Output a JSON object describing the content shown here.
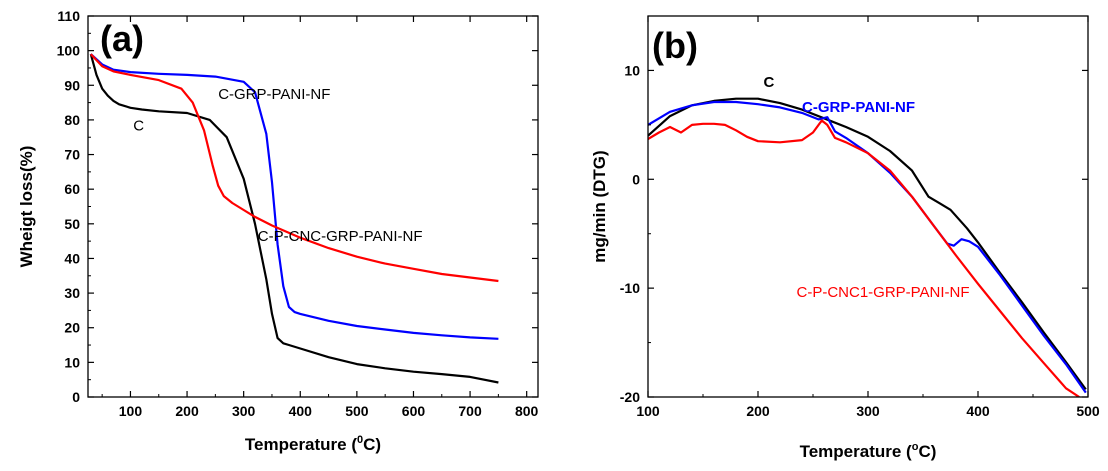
{
  "chart_data": [
    {
      "panel_label": "(a)",
      "type": "line",
      "xlabel": "Temperature (",
      "xlabel_sup": "0",
      "xlabel_unit": "C)",
      "ylabel": "Wheigt loss(%)",
      "xlim": [
        25,
        820
      ],
      "ylim": [
        0,
        110
      ],
      "xticks": [
        100,
        200,
        300,
        400,
        500,
        600,
        700,
        800
      ],
      "yticks": [
        0,
        10,
        20,
        30,
        40,
        50,
        60,
        70,
        80,
        90,
        100,
        110
      ],
      "grid": false,
      "series": [
        {
          "color": "#000000",
          "x": [
            30,
            40,
            50,
            60,
            70,
            80,
            100,
            120,
            150,
            200,
            240,
            270,
            300,
            320,
            340,
            350,
            360,
            370,
            380,
            400,
            450,
            500,
            550,
            600,
            650,
            700,
            750
          ],
          "y": [
            99,
            93,
            89,
            87,
            85.5,
            84.5,
            83.5,
            83,
            82.5,
            82,
            80,
            75,
            63,
            50,
            34,
            24,
            17,
            15.5,
            15,
            14,
            11.5,
            9.5,
            8.3,
            7.3,
            6.6,
            5.8,
            4.2
          ]
        },
        {
          "color": "#0000ff",
          "x": [
            30,
            50,
            70,
            100,
            150,
            200,
            250,
            300,
            320,
            340,
            350,
            360,
            370,
            380,
            390,
            400,
            450,
            500,
            550,
            600,
            650,
            700,
            750
          ],
          "y": [
            99,
            96,
            94.5,
            93.8,
            93.3,
            93,
            92.5,
            91,
            88,
            76,
            62,
            44,
            32,
            26,
            24.5,
            24,
            22,
            20.5,
            19.5,
            18.5,
            17.8,
            17.2,
            16.8
          ]
        },
        {
          "color": "#ff0000",
          "x": [
            30,
            50,
            70,
            100,
            150,
            190,
            210,
            230,
            245,
            255,
            265,
            280,
            300,
            320,
            350,
            400,
            450,
            500,
            550,
            600,
            650,
            700,
            750
          ],
          "y": [
            99,
            95.5,
            94,
            93,
            91.5,
            89,
            85,
            77,
            67,
            61,
            58,
            56,
            54,
            52,
            49.5,
            46,
            43,
            40.5,
            38.5,
            37,
            35.5,
            34.5,
            33.5
          ]
        }
      ],
      "annotations": [
        {
          "text": "C-GRP-PANI-NF",
          "x": 255,
          "y": 86,
          "color": "#000000",
          "bold": false
        },
        {
          "text": "C",
          "x": 105,
          "y": 77,
          "color": "#000000",
          "bold": false
        },
        {
          "text": "C-P-CNC-GRP-PANI-NF",
          "x": 325,
          "y": 45,
          "color": "#000000",
          "bold": false
        }
      ]
    },
    {
      "panel_label": "(b)",
      "type": "line",
      "xlabel": "Temperature (",
      "xlabel_sup": "o",
      "xlabel_unit": "C)",
      "ylabel": "mg/min (DTG)",
      "xlim": [
        100,
        500
      ],
      "ylim": [
        -20,
        15
      ],
      "xticks": [
        100,
        200,
        300,
        400,
        500
      ],
      "yticks": [
        -20,
        -10,
        0,
        10
      ],
      "grid": false,
      "series": [
        {
          "color": "#000000",
          "x": [
            100,
            120,
            140,
            160,
            180,
            200,
            220,
            240,
            260,
            280,
            300,
            320,
            340,
            355,
            365,
            375,
            390,
            400,
            420,
            440,
            460,
            480,
            498
          ],
          "y": [
            4.0,
            5.8,
            6.8,
            7.2,
            7.4,
            7.4,
            7.0,
            6.4,
            5.6,
            4.8,
            3.9,
            2.6,
            0.8,
            -1.6,
            -2.2,
            -2.8,
            -4.5,
            -5.8,
            -8.6,
            -11.3,
            -14.1,
            -16.8,
            -19.3
          ]
        },
        {
          "color": "#0000ff",
          "x": [
            100,
            120,
            140,
            160,
            180,
            200,
            220,
            240,
            255,
            263,
            270,
            280,
            300,
            320,
            340,
            360,
            372,
            378,
            385,
            392,
            400,
            420,
            440,
            460,
            480,
            498
          ],
          "y": [
            5.0,
            6.2,
            6.8,
            7.1,
            7.1,
            6.9,
            6.6,
            6.1,
            5.5,
            5.7,
            4.4,
            3.8,
            2.4,
            0.6,
            -1.6,
            -4.3,
            -5.9,
            -6.1,
            -5.5,
            -5.7,
            -6.2,
            -8.8,
            -11.6,
            -14.4,
            -17.0,
            -19.6
          ]
        },
        {
          "color": "#ff0000",
          "x": [
            100,
            110,
            120,
            130,
            140,
            150,
            160,
            170,
            180,
            190,
            200,
            220,
            240,
            250,
            258,
            263,
            270,
            280,
            300,
            320,
            340,
            360,
            380,
            400,
            420,
            440,
            460,
            480,
            492
          ],
          "y": [
            3.7,
            4.3,
            4.8,
            4.3,
            5.0,
            5.1,
            5.1,
            5.0,
            4.5,
            3.9,
            3.5,
            3.4,
            3.6,
            4.3,
            5.4,
            5.0,
            3.8,
            3.4,
            2.4,
            0.8,
            -1.6,
            -4.3,
            -7.0,
            -9.6,
            -12.1,
            -14.6,
            -16.9,
            -19.2,
            -20.0
          ]
        }
      ],
      "annotations": [
        {
          "text": "C",
          "x": 205,
          "y": 8.5,
          "color": "#000000",
          "bold": true
        },
        {
          "text": "C-GRP-PANI-NF",
          "x": 240,
          "y": 6.2,
          "color": "#0000ff",
          "bold": true
        },
        {
          "text": "C-P-CNC1-GRP-PANI-NF",
          "x": 235,
          "y": -10.8,
          "color": "#ff0000",
          "bold": false
        }
      ]
    }
  ]
}
